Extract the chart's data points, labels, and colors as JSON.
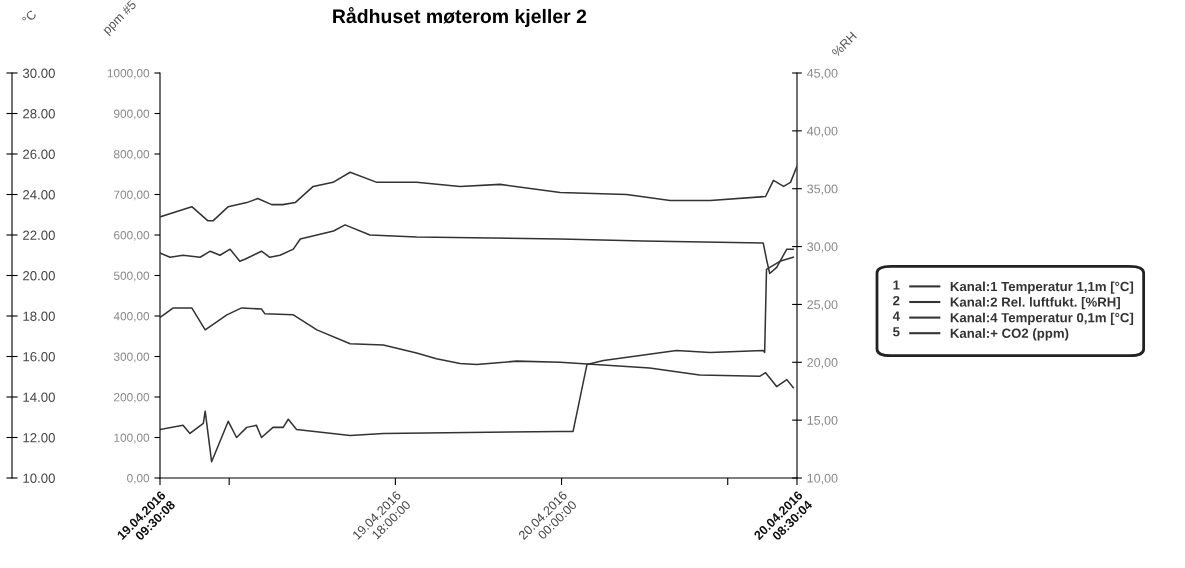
{
  "chart_data": {
    "type": "line",
    "title": "Rådhuset møterom kjeller 2",
    "ylabel": "ppm #5",
    "y2label": "%RH",
    "y3label": "°C",
    "xlim": [
      "2016-04-19T09:30:08",
      "2016-04-20T08:30:04"
    ],
    "xticks": [
      {
        "value": "2016-04-19T09:30:08",
        "label": "19.04.2016\n09:30:08"
      },
      {
        "value": "2016-04-19T12:00",
        "label": null
      },
      {
        "value": "2016-04-19T18:00",
        "label": "19.04.2016\n18:00:00"
      },
      {
        "value": "2016-04-20T00:00",
        "label": "20.04.2016\n00:00:00"
      },
      {
        "value": "2016-04-20T06:00",
        "label": null
      },
      {
        "value": "2016-04-20T08:30:04",
        "label": "20.04.2016\n08:30:04"
      }
    ],
    "ylim": [
      0,
      1000
    ],
    "yticks": [
      {
        "value": 0,
        "label": "0,00"
      },
      {
        "value": 100,
        "label": "100,00"
      },
      {
        "value": 200,
        "label": "200,00"
      },
      {
        "value": 300,
        "label": "300,00"
      },
      {
        "value": 400,
        "label": "400,00"
      },
      {
        "value": 500,
        "label": "500,00"
      },
      {
        "value": 600,
        "label": "600,00"
      },
      {
        "value": 700,
        "label": "700,00"
      },
      {
        "value": 800,
        "label": "800,00"
      },
      {
        "value": 900,
        "label": "900,00"
      },
      {
        "value": 1000,
        "label": "1000,00"
      }
    ],
    "y2lim": [
      10,
      45
    ],
    "y2ticks": [
      {
        "value": 10,
        "label": "10,00"
      },
      {
        "value": 15,
        "label": "15,00"
      },
      {
        "value": 20,
        "label": "20,00"
      },
      {
        "value": 25,
        "label": "25,00"
      },
      {
        "value": 30,
        "label": "30,00"
      },
      {
        "value": 35,
        "label": "35,00"
      },
      {
        "value": 40,
        "label": "40,00"
      },
      {
        "value": 45,
        "label": "45,00"
      }
    ],
    "y3lim": [
      10,
      30
    ],
    "y3ticks": [
      {
        "value": 10,
        "label": "10.00"
      },
      {
        "value": 12,
        "label": "12.00"
      },
      {
        "value": 14,
        "label": "14.00"
      },
      {
        "value": 16,
        "label": "16.00"
      },
      {
        "value": 18,
        "label": "18.00"
      },
      {
        "value": 20,
        "label": "20.00"
      },
      {
        "value": 22,
        "label": "22.00"
      },
      {
        "value": 24,
        "label": "24.00"
      },
      {
        "value": 26,
        "label": "26.00"
      },
      {
        "value": 28,
        "label": "28.00"
      },
      {
        "value": 30,
        "label": "30.00"
      }
    ],
    "legend": "right",
    "annotations": [
      "1",
      "2",
      "4",
      "5"
    ],
    "series": [
      {
        "name": "Kanal:1 Temperatur 1,1m [°C]",
        "color": "#333333",
        "axis": "y3",
        "x": [
          "2016-04-19T09:31",
          "2016-04-19T10:39",
          "2016-04-19T11:14",
          "2016-04-19T11:25",
          "2016-04-19T11:58",
          "2016-04-19T12:38",
          "2016-04-19T13:02",
          "2016-04-19T13:32",
          "2016-04-19T13:56",
          "2016-04-19T14:23",
          "2016-04-19T15:02",
          "2016-04-19T15:45",
          "2016-04-19T16:22",
          "2016-04-19T17:20",
          "2016-04-19T18:46",
          "2016-04-19T20:20",
          "2016-04-19T21:47",
          "2016-04-19T23:57",
          "2016-04-20T02:21",
          "2016-04-20T03:55",
          "2016-04-20T05:22",
          "2016-04-20T07:22",
          "2016-04-20T07:39",
          "2016-04-20T08:01",
          "2016-04-20T08:16",
          "2016-04-20T08:30"
        ],
        "values": [
          22.9,
          23.4,
          22.7,
          22.7,
          23.4,
          23.6,
          23.8,
          23.5,
          23.5,
          23.6,
          24.4,
          24.6,
          25.1,
          24.6,
          24.6,
          24.4,
          24.5,
          24.1,
          24.0,
          23.7,
          23.7,
          23.9,
          24.7,
          24.4,
          24.6,
          25.4
        ]
      },
      {
        "name": "Kanal:2 Rel. luftfukt. [%RH]",
        "color": "#333333",
        "axis": "y2",
        "x": [
          "2016-04-19T09:31",
          "2016-04-19T09:59",
          "2016-04-19T10:39",
          "2016-04-19T11:08",
          "2016-04-19T11:55",
          "2016-04-19T12:27",
          "2016-04-19T13:10",
          "2016-04-19T13:17",
          "2016-04-19T14:19",
          "2016-04-19T15:10",
          "2016-04-19T16:22",
          "2016-04-19T17:34",
          "2016-04-19T18:46",
          "2016-04-19T19:29",
          "2016-04-19T20:20",
          "2016-04-19T20:56",
          "2016-04-19T22:23",
          "2016-04-19T23:57",
          "2016-04-20T03:11",
          "2016-04-20T04:59",
          "2016-04-20T07:10",
          "2016-04-20T07:22",
          "2016-04-20T07:46",
          "2016-04-20T08:08",
          "2016-04-20T08:22"
        ],
        "values": [
          23.9,
          24.7,
          24.7,
          22.8,
          24.1,
          24.7,
          24.6,
          24.2,
          24.1,
          22.8,
          21.6,
          21.5,
          20.8,
          20.3,
          19.9,
          19.8,
          20.1,
          20.0,
          19.5,
          18.9,
          18.8,
          19.1,
          17.9,
          18.5,
          17.8
        ]
      },
      {
        "name": "Kanal:4 Temperatur 0,1m [°C]",
        "color": "#333333",
        "axis": "y3",
        "x": [
          "2016-04-19T09:31",
          "2016-04-19T09:52",
          "2016-04-19T10:20",
          "2016-04-19T10:57",
          "2016-04-19T11:19",
          "2016-04-19T11:40",
          "2016-04-19T12:02",
          "2016-04-19T12:23",
          "2016-04-19T12:34",
          "2016-04-19T13:10",
          "2016-04-19T13:28",
          "2016-04-19T13:50",
          "2016-04-19T14:19",
          "2016-04-19T14:34",
          "2016-04-19T15:10",
          "2016-04-19T15:46",
          "2016-04-19T16:11",
          "2016-04-19T17:05",
          "2016-04-19T18:46",
          "2016-04-19T23:57",
          "2016-04-20T02:57",
          "2016-04-20T07:17",
          "2016-04-20T07:24",
          "2016-04-20T07:31",
          "2016-04-20T07:46",
          "2016-04-20T08:08",
          "2016-04-20T08:22"
        ],
        "values": [
          21.1,
          20.9,
          21.0,
          20.9,
          21.2,
          21.0,
          21.3,
          20.7,
          20.8,
          21.2,
          20.9,
          21.0,
          21.3,
          21.8,
          22.0,
          22.2,
          22.5,
          22.0,
          21.9,
          21.8,
          21.7,
          21.6,
          20.8,
          20.1,
          20.4,
          21.3,
          21.3
        ]
      },
      {
        "name": "Kanal:+ CO2 (ppm)",
        "color": "#333333",
        "axis": "y",
        "x": [
          "2016-04-19T09:31",
          "2016-04-19T10:20",
          "2016-04-19T10:35",
          "2016-04-19T11:04",
          "2016-04-19T11:08",
          "2016-04-19T11:22",
          "2016-04-19T11:58",
          "2016-04-19T12:16",
          "2016-04-19T12:38",
          "2016-04-19T12:59",
          "2016-04-19T13:10",
          "2016-04-19T13:35",
          "2016-04-19T13:57",
          "2016-04-19T14:08",
          "2016-04-19T14:26",
          "2016-04-19T16:22",
          "2016-04-19T17:34",
          "2016-04-19T23:57",
          "2016-04-20T00:25",
          "2016-04-20T00:55",
          "2016-04-20T01:31",
          "2016-04-20T04:09",
          "2016-04-20T05:22",
          "2016-04-20T07:17",
          "2016-04-20T07:20",
          "2016-04-20T07:24",
          "2016-04-20T07:53",
          "2016-04-20T08:22"
        ],
        "values": [
          120,
          130,
          110,
          135,
          165,
          40,
          140,
          100,
          125,
          130,
          100,
          125,
          125,
          145,
          120,
          105,
          110,
          115,
          115,
          280,
          290,
          315,
          310,
          315,
          310,
          515,
          535,
          545
        ]
      }
    ]
  }
}
